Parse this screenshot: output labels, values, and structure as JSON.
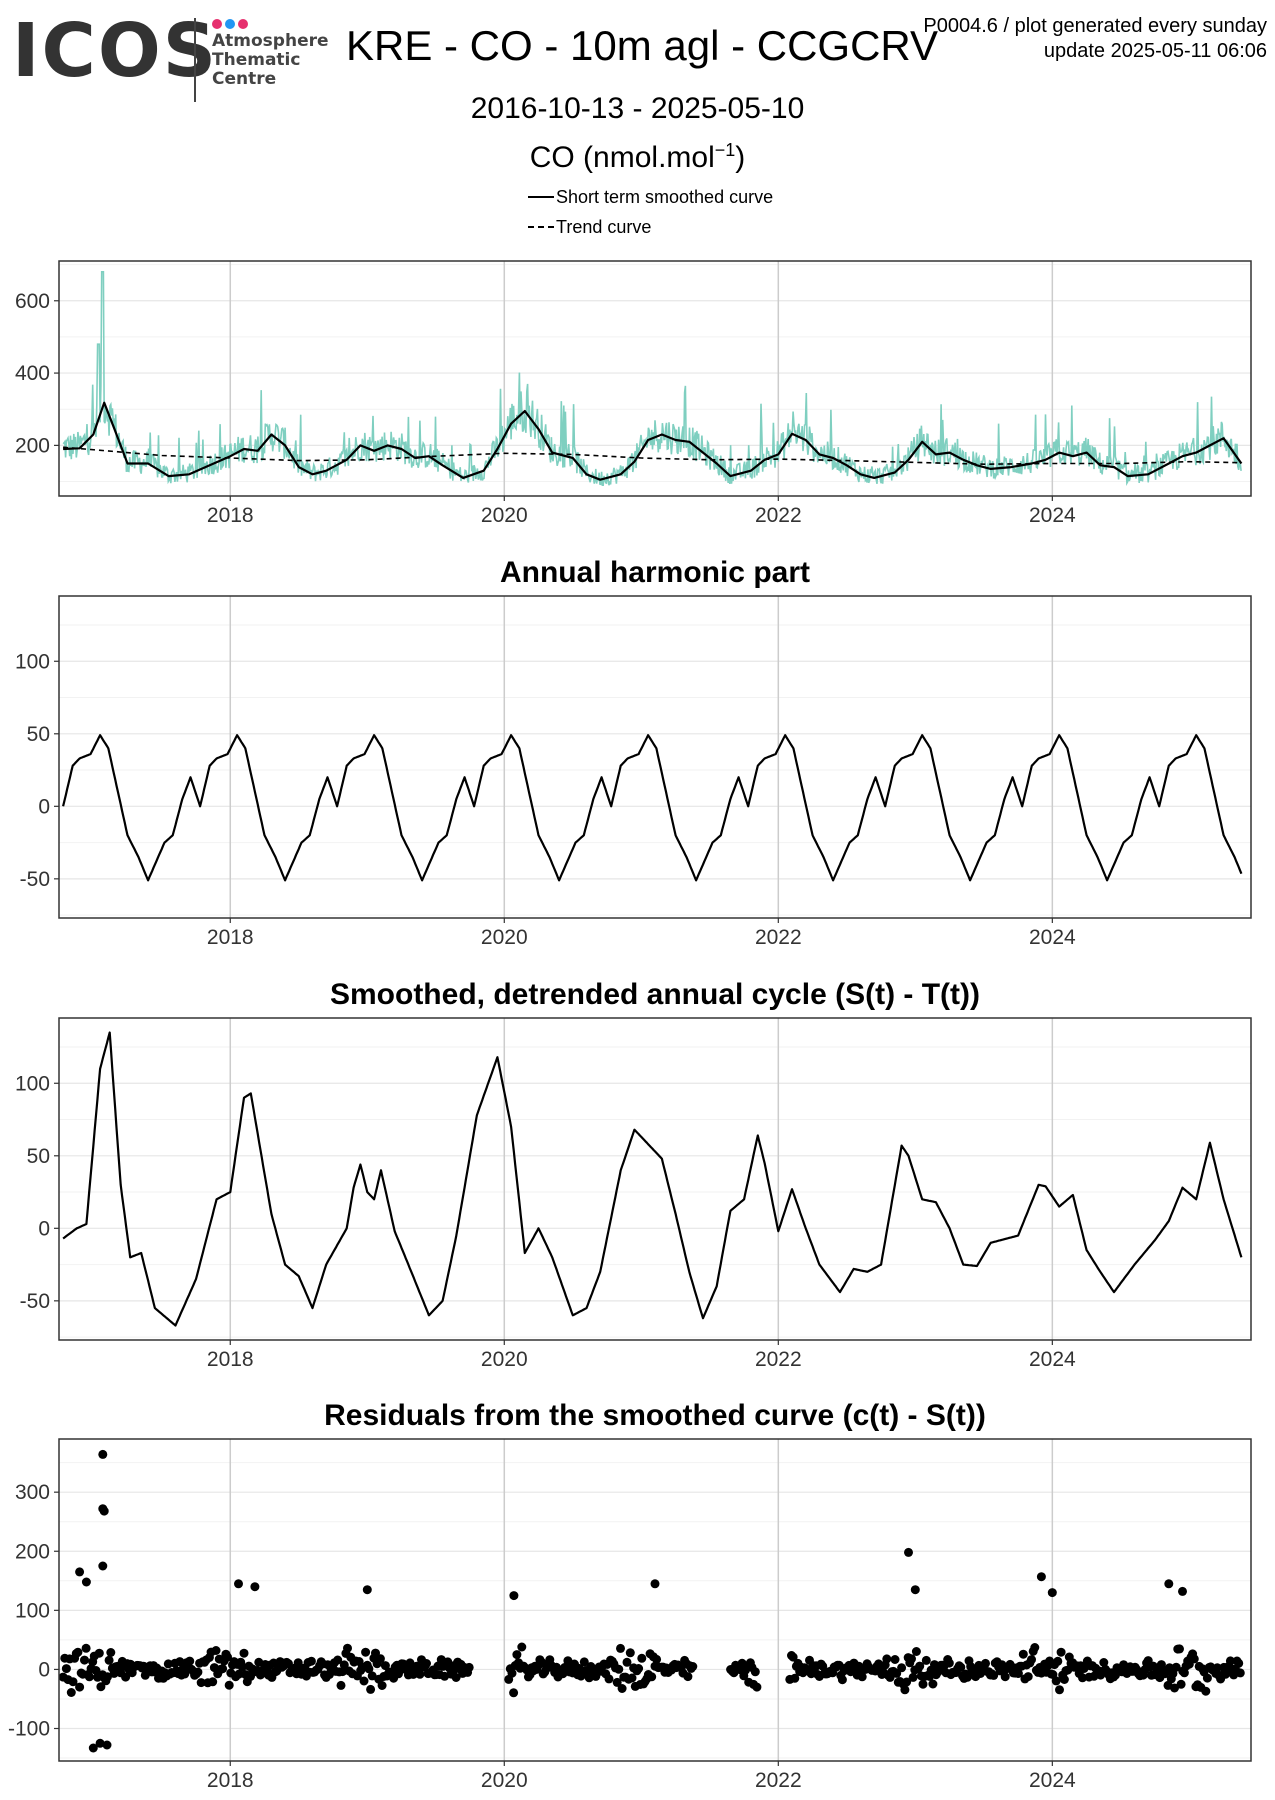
{
  "header": {
    "logo_text": "ICOS",
    "logo_sub": [
      "Atmosphere",
      "Thematic",
      "Centre"
    ],
    "title": "KRE - CO - 10m agl - CCGCRV",
    "date_range": "2016-10-13 - 2025-05-10",
    "units_base": "CO (nmol.mol",
    "units_sup": "−1",
    "units_close": ")",
    "info_line1": "P0004.6 / plot generated every sunday",
    "info_line2": "update  2025-05-11 06:06"
  },
  "legend": {
    "short_term": "Short term smoothed curve",
    "trend": "Trend curve"
  },
  "colors": {
    "logo_dots": [
      "#e6306e",
      "#2196f3",
      "#e6306e"
    ],
    "raw": "#7fcfc0",
    "line": "#000000",
    "grid": "#e6e6e6",
    "grid_major": "#cccccc"
  },
  "chart_data": [
    {
      "type": "line",
      "title": "",
      "xlabel": "",
      "ylabel": "",
      "xlim": [
        2016.75,
        2025.45
      ],
      "ylim": [
        60,
        710
      ],
      "yticks": [
        200,
        400,
        600
      ],
      "xticks": [
        2018,
        2020,
        2022,
        2024
      ],
      "series": [
        {
          "name": "Short term smoothed curve",
          "style": "solid",
          "x": [
            2016.78,
            2016.9,
            2017.0,
            2017.08,
            2017.15,
            2017.25,
            2017.4,
            2017.55,
            2017.7,
            2017.85,
            2018.0,
            2018.1,
            2018.2,
            2018.3,
            2018.4,
            2018.5,
            2018.6,
            2018.7,
            2018.85,
            2018.95,
            2019.05,
            2019.15,
            2019.25,
            2019.35,
            2019.45,
            2019.55,
            2019.7,
            2019.85,
            2019.95,
            2020.05,
            2020.15,
            2020.25,
            2020.35,
            2020.5,
            2020.6,
            2020.7,
            2020.85,
            2020.95,
            2021.05,
            2021.15,
            2021.25,
            2021.35,
            2021.45,
            2021.55,
            2021.65,
            2021.8,
            2021.9,
            2022.0,
            2022.1,
            2022.2,
            2022.3,
            2022.4,
            2022.5,
            2022.6,
            2022.7,
            2022.85,
            2022.95,
            2023.05,
            2023.15,
            2023.25,
            2023.35,
            2023.45,
            2023.55,
            2023.7,
            2023.85,
            2023.95,
            2024.05,
            2024.15,
            2024.25,
            2024.35,
            2024.45,
            2024.55,
            2024.7,
            2024.85,
            2024.95,
            2025.05,
            2025.15,
            2025.25,
            2025.38
          ],
          "y": [
            190,
            192,
            230,
            318,
            250,
            150,
            150,
            115,
            120,
            145,
            170,
            190,
            185,
            230,
            200,
            140,
            120,
            130,
            160,
            200,
            185,
            200,
            190,
            165,
            170,
            145,
            110,
            130,
            190,
            260,
            295,
            245,
            180,
            165,
            120,
            105,
            120,
            155,
            215,
            230,
            215,
            210,
            180,
            150,
            115,
            130,
            160,
            175,
            232,
            215,
            175,
            165,
            145,
            120,
            110,
            125,
            160,
            210,
            175,
            180,
            160,
            145,
            135,
            140,
            150,
            160,
            180,
            170,
            180,
            145,
            140,
            115,
            120,
            150,
            170,
            180,
            200,
            220,
            150
          ]
        },
        {
          "name": "Trend curve",
          "style": "dashed",
          "x": [
            2016.78,
            2017.5,
            2018.0,
            2018.5,
            2019.0,
            2019.5,
            2020.0,
            2020.5,
            2021.0,
            2021.5,
            2022.0,
            2022.5,
            2023.0,
            2023.5,
            2024.0,
            2024.5,
            2025.0,
            2025.38
          ],
          "y": [
            195,
            172,
            165,
            158,
            160,
            170,
            178,
            175,
            165,
            160,
            162,
            158,
            153,
            148,
            150,
            150,
            155,
            152
          ]
        }
      ]
    },
    {
      "type": "line",
      "title": "Annual harmonic part",
      "xlabel": "",
      "ylabel": "",
      "xlim": [
        2016.75,
        2025.45
      ],
      "ylim": [
        -77,
        145
      ],
      "yticks": [
        -50,
        0,
        50,
        100
      ],
      "xticks": [
        2018,
        2020,
        2022,
        2024
      ],
      "series": [
        {
          "name": "",
          "x_start": 2016.78,
          "x_end": 2025.38,
          "peak": 49,
          "trough": -51
        }
      ]
    },
    {
      "type": "line",
      "title": "Smoothed, detrended annual cycle (S(t) - T(t))",
      "xlabel": "",
      "ylabel": "",
      "xlim": [
        2016.75,
        2025.45
      ],
      "ylim": [
        -77,
        145
      ],
      "yticks": [
        -50,
        0,
        50,
        100
      ],
      "xticks": [
        2018,
        2020,
        2022,
        2024
      ],
      "series": [
        {
          "name": "",
          "x": [
            2016.78,
            2016.88,
            2016.95,
            2017.05,
            2017.12,
            2017.2,
            2017.27,
            2017.35,
            2017.45,
            2017.6,
            2017.75,
            2017.9,
            2018.0,
            2018.1,
            2018.15,
            2018.3,
            2018.4,
            2018.5,
            2018.6,
            2018.7,
            2018.85,
            2018.9,
            2018.95,
            2019.0,
            2019.05,
            2019.1,
            2019.2,
            2019.3,
            2019.45,
            2019.55,
            2019.65,
            2019.8,
            2019.95,
            2020.05,
            2020.15,
            2020.25,
            2020.35,
            2020.5,
            2020.6,
            2020.7,
            2020.85,
            2020.95,
            2021.05,
            2021.15,
            2021.25,
            2021.35,
            2021.45,
            2021.55,
            2021.65,
            2021.75,
            2021.85,
            2021.9,
            2022.0,
            2022.1,
            2022.2,
            2022.3,
            2022.45,
            2022.55,
            2022.65,
            2022.75,
            2022.9,
            2022.95,
            2023.05,
            2023.15,
            2023.25,
            2023.35,
            2023.45,
            2023.55,
            2023.75,
            2023.9,
            2023.95,
            2024.05,
            2024.15,
            2024.25,
            2024.35,
            2024.45,
            2024.6,
            2024.75,
            2024.85,
            2024.95,
            2025.05,
            2025.15,
            2025.25,
            2025.38
          ],
          "y": [
            -7,
            0,
            3,
            110,
            135,
            30,
            -20,
            -17,
            -55,
            -67,
            -35,
            20,
            25,
            90,
            93,
            10,
            -25,
            -33,
            -55,
            -25,
            0,
            28,
            44,
            25,
            20,
            40,
            -2,
            -25,
            -60,
            -50,
            -5,
            78,
            118,
            70,
            -17,
            0,
            -20,
            -60,
            -55,
            -30,
            40,
            68,
            58,
            48,
            10,
            -30,
            -62,
            -40,
            12,
            20,
            64,
            45,
            -2,
            27,
            0,
            -25,
            -44,
            -28,
            -30,
            -25,
            57,
            50,
            20,
            18,
            0,
            -25,
            -26,
            -10,
            -5,
            30,
            29,
            15,
            23,
            -15,
            -30,
            -44,
            -25,
            -8,
            5,
            28,
            20,
            59,
            20,
            -20
          ]
        }
      ]
    },
    {
      "type": "scatter",
      "title": "Residuals from the smoothed curve (c(t) - S(t))",
      "xlabel": "",
      "ylabel": "",
      "xlim": [
        2016.75,
        2025.45
      ],
      "ylim": [
        -155,
        390
      ],
      "yticks": [
        -100,
        0,
        100,
        200,
        300
      ],
      "xticks": [
        2018,
        2020,
        2022,
        2024
      ],
      "outliers": [
        {
          "x": 2017.07,
          "y": 364
        },
        {
          "x": 2017.07,
          "y": 272
        },
        {
          "x": 2017.08,
          "y": 268
        },
        {
          "x": 2017.07,
          "y": 175
        },
        {
          "x": 2016.9,
          "y": 165
        },
        {
          "x": 2016.95,
          "y": 148
        },
        {
          "x": 2017.05,
          "y": -125
        },
        {
          "x": 2017.0,
          "y": -133
        },
        {
          "x": 2017.1,
          "y": -128
        },
        {
          "x": 2018.06,
          "y": 145
        },
        {
          "x": 2018.18,
          "y": 140
        },
        {
          "x": 2019.0,
          "y": 135
        },
        {
          "x": 2020.07,
          "y": 125
        },
        {
          "x": 2021.1,
          "y": 145
        },
        {
          "x": 2022.95,
          "y": 198
        },
        {
          "x": 2023.0,
          "y": 135
        },
        {
          "x": 2023.92,
          "y": 157
        },
        {
          "x": 2024.0,
          "y": 130
        },
        {
          "x": 2024.85,
          "y": 145
        },
        {
          "x": 2024.95,
          "y": 132
        }
      ],
      "gaps": [
        [
          2019.75,
          2020.02
        ],
        [
          2021.38,
          2021.65
        ],
        [
          2021.85,
          2022.08
        ]
      ]
    }
  ]
}
